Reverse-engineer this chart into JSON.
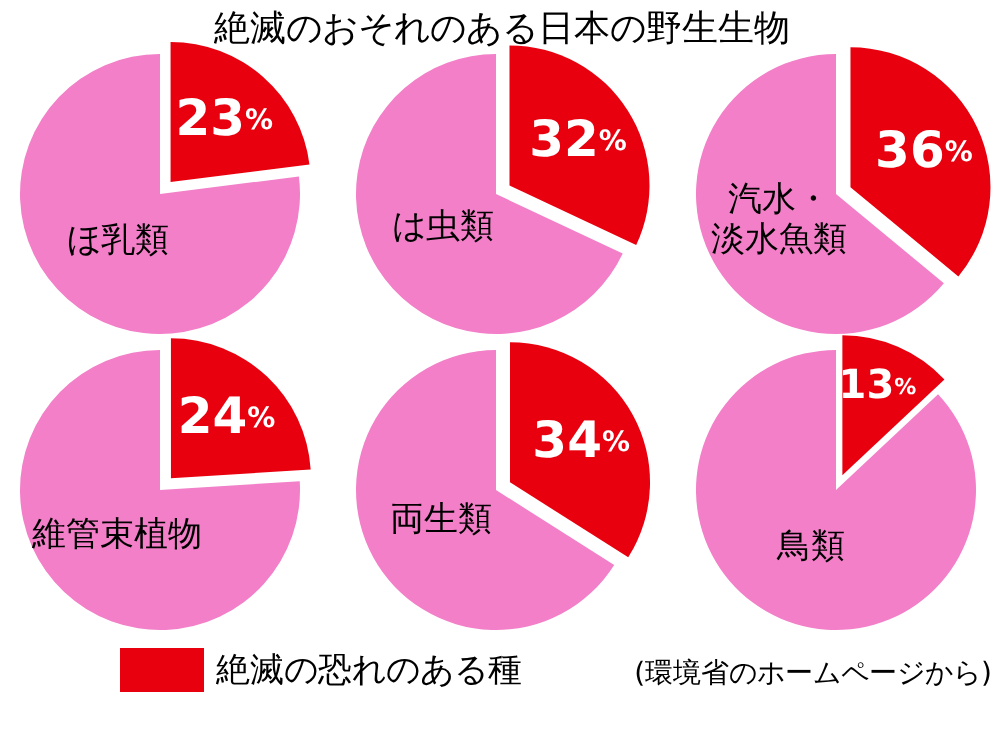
{
  "chart_data": [
    {
      "type": "pie",
      "title": "ほ乳類",
      "categories": [
        "絶滅の恐れのある種",
        null
      ],
      "values": [
        23,
        77
      ],
      "colors": [
        "#e8000f",
        "#f27fc8"
      ],
      "value_labels": [
        "23%",
        null
      ],
      "legend": "bottom"
    },
    {
      "type": "pie",
      "title": "は虫類",
      "categories": [
        null,
        null
      ],
      "values": [
        32,
        68
      ],
      "colors": [
        "#e8000f",
        "#f27fc8"
      ],
      "value_labels": [
        "32%",
        null
      ]
    },
    {
      "type": "pie",
      "title": "汽水・淡水魚類",
      "categories": [
        null,
        null
      ],
      "values": [
        36,
        64
      ],
      "colors": [
        "#e8000f",
        "#f27fc8"
      ],
      "value_labels": [
        "36%",
        null
      ]
    },
    {
      "type": "pie",
      "title": "維管束植物",
      "categories": [
        null,
        null
      ],
      "values": [
        24,
        76
      ],
      "colors": [
        "#e8000f",
        "#f27fc8"
      ],
      "value_labels": [
        "24%",
        null
      ]
    },
    {
      "type": "pie",
      "title": "両生類",
      "categories": [
        null,
        null
      ],
      "values": [
        34,
        66
      ],
      "colors": [
        "#e8000f",
        "#f27fc8"
      ],
      "value_labels": [
        "34%",
        null
      ]
    },
    {
      "type": "pie",
      "title": "鳥類",
      "categories": [
        null,
        null
      ],
      "values": [
        13,
        87
      ],
      "colors": [
        "#e8000f",
        "#f27fc8"
      ],
      "value_labels": [
        "13%",
        null
      ]
    },
    {
      "type": "other",
      "title": "絶滅のおそれのある日本の野生生物",
      "annotations": [
        "(環境省のホームページから)"
      ]
    }
  ]
}
